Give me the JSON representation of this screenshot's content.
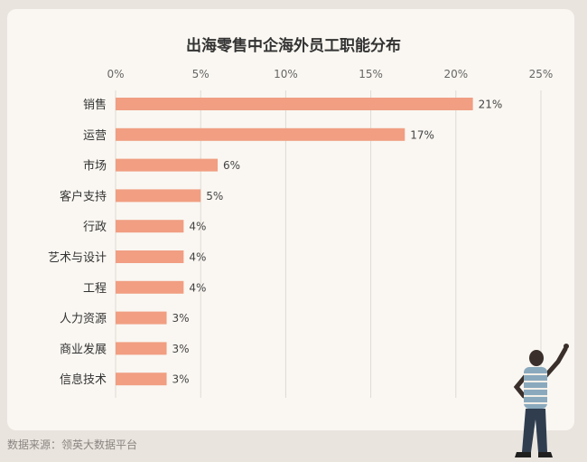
{
  "chart_data": {
    "type": "bar",
    "orientation": "horizontal",
    "title": "出海零售中企海外员工职能分布",
    "categories": [
      "销售",
      "运营",
      "市场",
      "客户支持",
      "行政",
      "艺术与设计",
      "工程",
      "人力资源",
      "商业发展",
      "信息技术"
    ],
    "values": [
      21,
      17,
      6,
      5,
      4,
      4,
      4,
      3,
      3,
      3
    ],
    "value_labels": [
      "21%",
      "17%",
      "6%",
      "5%",
      "4%",
      "4%",
      "4%",
      "3%",
      "3%",
      "3%"
    ],
    "xlim": [
      0,
      25
    ],
    "ticks": [
      0,
      5,
      10,
      15,
      20,
      25
    ],
    "tick_labels": [
      "0%",
      "5%",
      "10%",
      "15%",
      "20%",
      "25%"
    ],
    "xlabel": "",
    "ylabel": "",
    "grid": true,
    "bar_color": "#f19e82",
    "grid_color": "#dedad3"
  },
  "footer": {
    "source": "数据来源：领英大数据平台"
  },
  "colors": {
    "background": "#e9e4de",
    "card": "#faf7f2",
    "text": "#333333",
    "muted": "#8a8580"
  },
  "decor": {
    "illustration": "man-pointing-figure"
  }
}
